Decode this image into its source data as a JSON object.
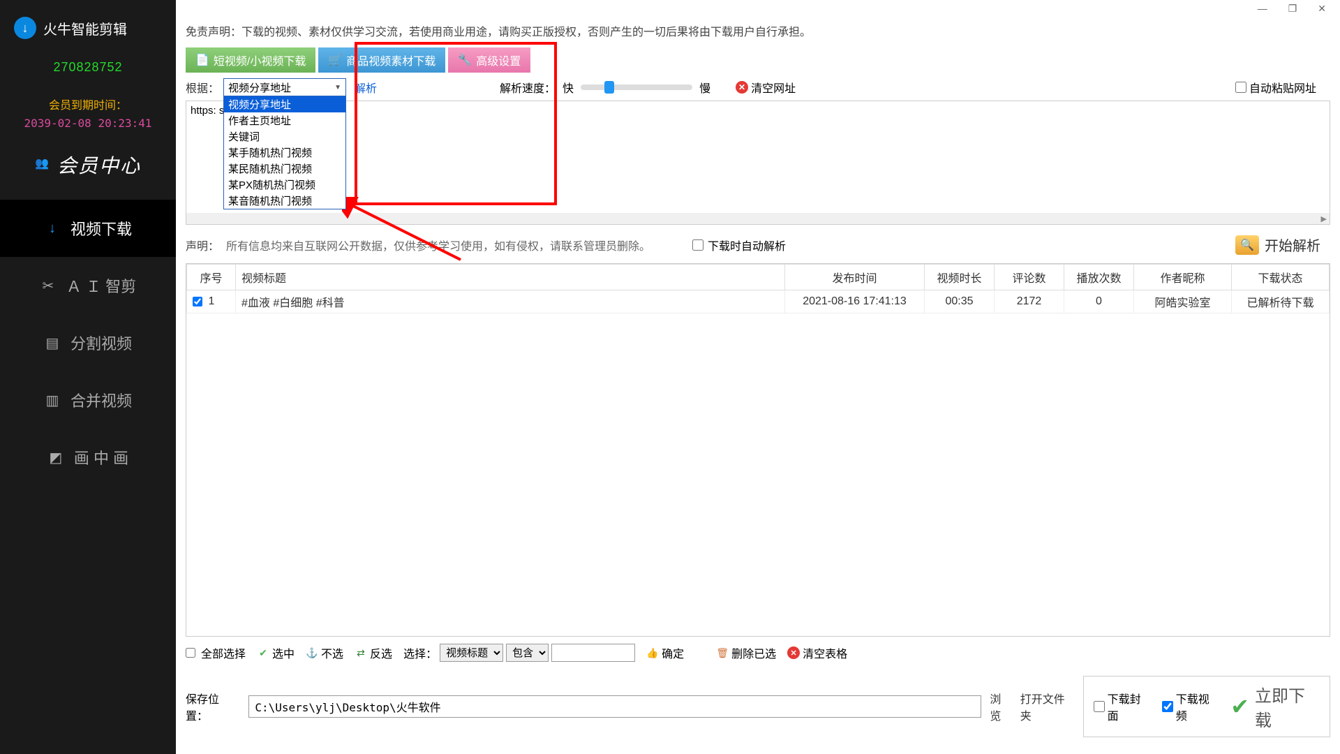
{
  "colors": {
    "sidebar_bg": "#1a1a1a",
    "accent_green": "#23db2b",
    "expire_label": "#f0b000",
    "expire_time": "#db4b9e",
    "red_box": "#ff0000",
    "tab_green": "#6bb255",
    "tab_blue": "#3d96d3",
    "tab_pink": "#e876ab",
    "link_blue": "#0a5fd9",
    "slider_thumb": "#2196f3",
    "danger": "#e53935",
    "dl_green": "#4caf50"
  },
  "sidebar": {
    "app_name": "火牛智能剪辑",
    "user_id": "270828752",
    "expire_label": "会员到期时间：",
    "expire_time": "2039-02-08 20:23:41",
    "member_center": "会员中心",
    "nav": [
      {
        "label": "视频下载",
        "icon": "↓",
        "icon_name": "download-icon",
        "active": true
      },
      {
        "label": "Ａ Ｉ 智剪",
        "icon": "✂",
        "icon_name": "ai-cut-icon",
        "active": false
      },
      {
        "label": "分割视频",
        "icon": "▤",
        "icon_name": "split-icon",
        "active": false
      },
      {
        "label": "合并视频",
        "icon": "▥",
        "icon_name": "merge-icon",
        "active": false
      },
      {
        "label": "画 中 画",
        "icon": "◩",
        "icon_name": "pip-icon",
        "active": false
      }
    ]
  },
  "titlebar": {
    "min": "—",
    "max": "❐",
    "close": "✕"
  },
  "disclaimer": "免责声明：下载的视频、素材仅供学习交流，若使用商业用途，请购买正版授权，否则产生的一切后果将由下载用户自行承担。",
  "tabs": [
    {
      "label": "短视频/小视频下载",
      "icon": "📄",
      "cls": "tab-green",
      "name": "tab-short-video"
    },
    {
      "label": "商品视频素材下载",
      "icon": "🛒",
      "cls": "tab-blue",
      "name": "tab-product-video"
    },
    {
      "label": "高级设置",
      "icon": "🔧",
      "cls": "tab-pink",
      "name": "tab-advanced"
    }
  ],
  "controls": {
    "by_label": "根据：",
    "dropdown_selected": "视频分享地址",
    "dropdown_options": [
      "视频分享地址",
      "作者主页地址",
      "关键词",
      "某手随机热门视频",
      "某民随机热门视频",
      "某PX随机热门视频",
      "某音随机热门视频"
    ],
    "parse_link": "解析",
    "speed_label": "解析速度：",
    "fast": "快",
    "slow": "慢",
    "slider_pos_pct": 22,
    "clear_url": "清空网址",
    "auto_paste": "自动粘贴网址"
  },
  "url_text": "https:                                    soon/s/IdhVC3JWp18/",
  "note": {
    "label": "声明：",
    "text": "所有信息均来自互联网公开数据，仅供参考学习使用，如有侵权，请联系管理员删除。",
    "auto_parse": "下载时自动解析",
    "start_parse": "开始解析"
  },
  "table": {
    "columns": [
      "序号",
      "视频标题",
      "发布时间",
      "视频时长",
      "评论数",
      "播放次数",
      "作者昵称",
      "下载状态"
    ],
    "col_widths": [
      "70px",
      "auto",
      "200px",
      "100px",
      "100px",
      "100px",
      "140px",
      "140px"
    ],
    "rows": [
      {
        "idx": "1",
        "checked": true,
        "title": "#血液 #白细胞 #科普",
        "pub": "2021-08-16 17:41:13",
        "dur": "00:35",
        "comments": "2172",
        "plays": "0",
        "author": "阿皓实验室",
        "status": "已解析待下载"
      }
    ]
  },
  "bottom": {
    "select_all": "全部选择",
    "select": "选中",
    "unselect": "不选",
    "invert": "反选",
    "choose_label": "选择：",
    "choose_field": "视频标题",
    "contain": "包含",
    "confirm": "确定",
    "del_selected": "删除已选",
    "clear_table": "清空表格"
  },
  "save": {
    "label": "保存位置：",
    "path": "C:\\Users\\ylj\\Desktop\\火牛软件",
    "browse": "浏览",
    "open_folder": "打开文件夹",
    "dl_cover": "下载封面",
    "dl_video": "下载视频",
    "dl_video_checked": true,
    "dl_cover_checked": false,
    "download_now": "立即下载"
  }
}
